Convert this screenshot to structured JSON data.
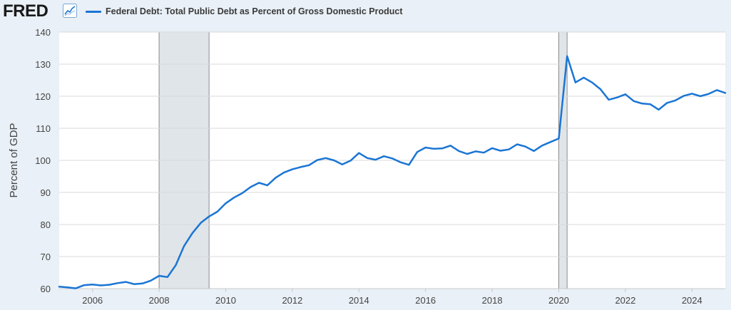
{
  "header": {
    "logo_text": "FRED"
  },
  "chart_data": {
    "type": "line",
    "title": "",
    "xlabel": "",
    "ylabel": "Percent of GDP",
    "ylim": [
      60,
      140
    ],
    "xlim": [
      2005.0,
      2025.0
    ],
    "yticks": [
      60,
      70,
      80,
      90,
      100,
      110,
      120,
      130,
      140
    ],
    "xticks": [
      2006,
      2008,
      2010,
      2012,
      2014,
      2016,
      2018,
      2020,
      2022,
      2024
    ],
    "grid": true,
    "legend_position": "top-left",
    "recessions": [
      [
        2008.0,
        2009.5
      ],
      [
        2020.0,
        2020.25
      ]
    ],
    "colors": {
      "line": "#1a75d4",
      "recession": "#e0e5ea",
      "grid": "#d9d9d9"
    },
    "series": [
      {
        "name": "Federal Debt: Total Public Debt as Percent of Gross Domestic Product",
        "x": [
          2005.0,
          2005.25,
          2005.5,
          2005.75,
          2006.0,
          2006.25,
          2006.5,
          2006.75,
          2007.0,
          2007.25,
          2007.5,
          2007.75,
          2008.0,
          2008.25,
          2008.5,
          2008.75,
          2009.0,
          2009.25,
          2009.5,
          2009.75,
          2010.0,
          2010.25,
          2010.5,
          2010.75,
          2011.0,
          2011.25,
          2011.5,
          2011.75,
          2012.0,
          2012.25,
          2012.5,
          2012.75,
          2013.0,
          2013.25,
          2013.5,
          2013.75,
          2014.0,
          2014.25,
          2014.5,
          2014.75,
          2015.0,
          2015.25,
          2015.5,
          2015.75,
          2016.0,
          2016.25,
          2016.5,
          2016.75,
          2017.0,
          2017.25,
          2017.5,
          2017.75,
          2018.0,
          2018.25,
          2018.5,
          2018.75,
          2019.0,
          2019.25,
          2019.5,
          2019.75,
          2020.0,
          2020.25,
          2020.5,
          2020.75,
          2021.0,
          2021.25,
          2021.5,
          2021.75,
          2022.0,
          2022.25,
          2022.5,
          2022.75,
          2023.0,
          2023.25,
          2023.5,
          2023.75,
          2024.0,
          2024.25,
          2024.5,
          2024.75,
          2025.0
        ],
        "values": [
          60.6,
          60.4,
          60.1,
          61.1,
          61.3,
          61.0,
          61.2,
          61.7,
          62.1,
          61.4,
          61.6,
          62.5,
          64.0,
          63.6,
          67.3,
          73.3,
          77.3,
          80.5,
          82.5,
          84.0,
          86.6,
          88.4,
          89.8,
          91.7,
          93.0,
          92.2,
          94.6,
          96.2,
          97.2,
          97.9,
          98.5,
          100.1,
          100.7,
          100.0,
          98.7,
          99.9,
          102.3,
          100.7,
          100.2,
          101.3,
          100.6,
          99.4,
          98.6,
          102.6,
          104.0,
          103.6,
          103.7,
          104.6,
          102.9,
          102.0,
          102.8,
          102.4,
          103.8,
          103.0,
          103.4,
          105.0,
          104.3,
          102.9,
          104.6,
          105.7,
          106.8,
          132.5,
          124.3,
          125.8,
          124.3,
          122.2,
          118.9,
          119.6,
          120.6,
          118.5,
          117.7,
          117.5,
          115.8,
          117.9,
          118.7,
          120.1,
          120.8,
          120.0,
          120.7,
          121.9,
          121.0
        ]
      }
    ]
  }
}
